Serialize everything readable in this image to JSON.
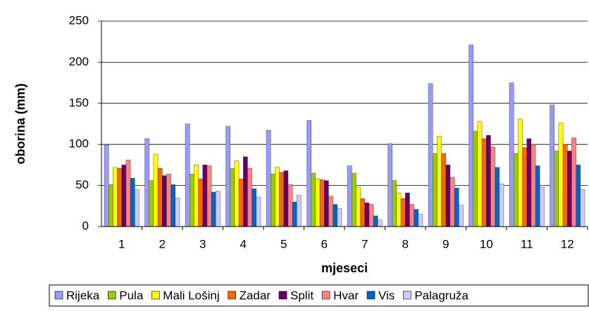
{
  "chart_data": {
    "type": "bar",
    "y_label": "oborina (mm)",
    "x_label": "mjeseci",
    "categories": [
      "1",
      "2",
      "3",
      "4",
      "5",
      "6",
      "7",
      "8",
      "9",
      "10",
      "11",
      "12"
    ],
    "series": [
      {
        "name": "Rijeka",
        "color": "#9999ff",
        "values": [
          99,
          107,
          125,
          122,
          117,
          129,
          74,
          101,
          174,
          221,
          175,
          148
        ]
      },
      {
        "name": "Pula",
        "color": "#99cc00",
        "values": [
          51,
          56,
          64,
          71,
          64,
          65,
          65,
          56,
          89,
          116,
          89,
          92
        ]
      },
      {
        "name": "Mali Lošinj",
        "color": "#ffff00",
        "values": [
          72,
          88,
          75,
          80,
          72,
          58,
          48,
          41,
          110,
          128,
          131,
          126
        ]
      },
      {
        "name": "Zadar",
        "color": "#ff6600",
        "values": [
          71,
          71,
          58,
          58,
          66,
          57,
          34,
          34,
          89,
          107,
          96,
          100
        ]
      },
      {
        "name": "Split",
        "color": "#660066",
        "values": [
          75,
          62,
          75,
          85,
          68,
          56,
          29,
          41,
          75,
          111,
          107,
          92
        ]
      },
      {
        "name": "Hvar",
        "color": "#ff8080",
        "values": [
          81,
          64,
          74,
          71,
          51,
          37,
          27,
          27,
          60,
          97,
          100,
          108
        ]
      },
      {
        "name": "Vis",
        "color": "#0066cc",
        "values": [
          59,
          51,
          42,
          46,
          30,
          27,
          13,
          21,
          47,
          72,
          74,
          75
        ]
      },
      {
        "name": "Palagruža",
        "color": "#ccccff",
        "values": [
          45,
          35,
          43,
          36,
          38,
          22,
          8,
          15,
          26,
          52,
          48,
          45
        ]
      }
    ],
    "ylim": [
      0,
      250
    ],
    "yticks": [
      0,
      50,
      100,
      150,
      200,
      250
    ],
    "grid": true
  }
}
